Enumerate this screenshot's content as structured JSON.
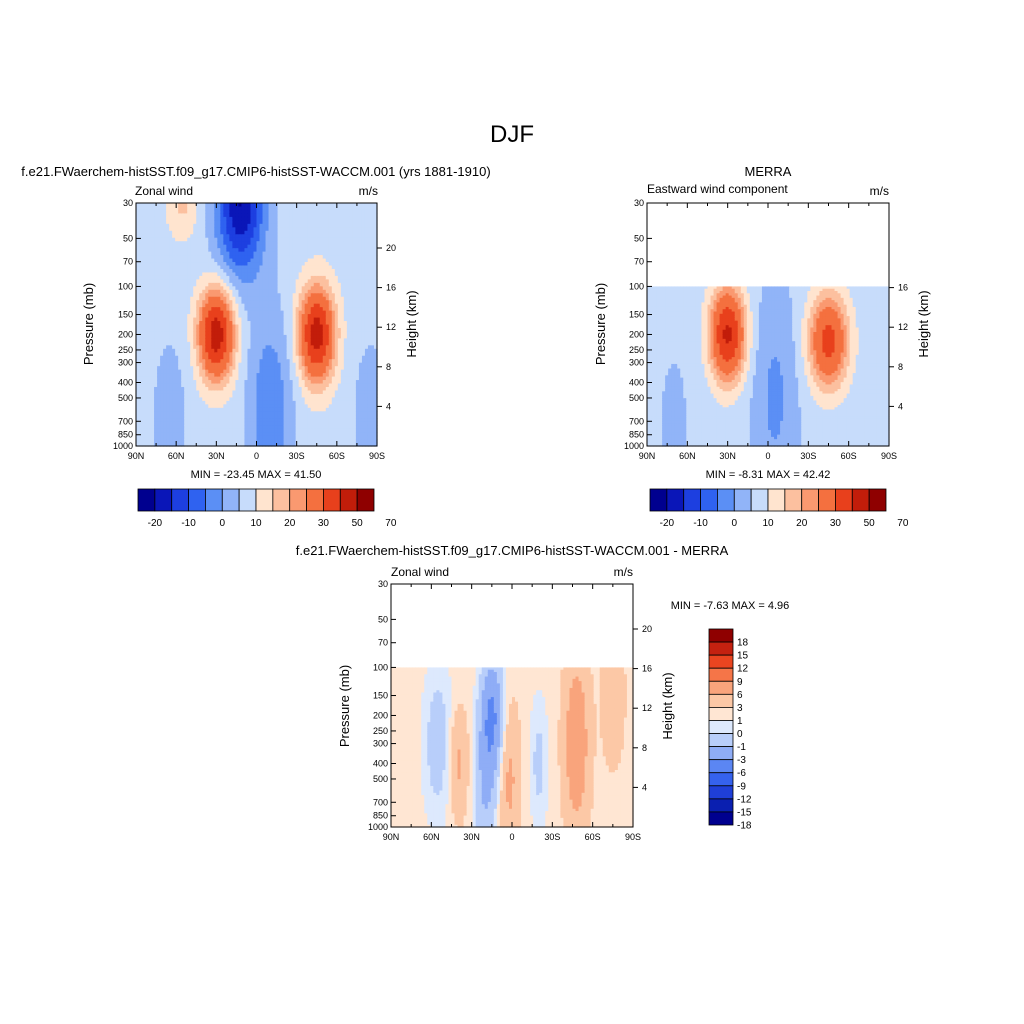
{
  "figure": {
    "title": "DJF",
    "units": "m/s"
  },
  "panels": {
    "model": {
      "case": "f.e21.FWaerchem-histSST.f09_g17.CMIP6-histSST-WACCM.001 (yrs 1881-1910)",
      "variable": "Zonal wind",
      "units": "m/s",
      "ylabel_left": "Pressure (mb)",
      "ylabel_right": "Height (km)",
      "minmax": "MIN = -23.45  MAX =  41.50"
    },
    "obs": {
      "case": "MERRA",
      "variable": "Eastward wind component",
      "units": "m/s",
      "ylabel_left": "Pressure (mb)",
      "ylabel_right": "Height (km)",
      "minmax": "MIN =  -8.31  MAX =  42.42"
    },
    "diff": {
      "case": "f.e21.FWaerchem-histSST.f09_g17.CMIP6-histSST-WACCM.001 - MERRA",
      "variable": "Zonal wind",
      "units": "m/s",
      "ylabel_left": "Pressure (mb)",
      "ylabel_right": "Height (km)",
      "minmax": "MIN =  -7.63  MAX =   4.96"
    }
  },
  "colors": {
    "main_palette": [
      "#00008f",
      "#0a16b8",
      "#1d3fe0",
      "#2f62f0",
      "#5b8ff5",
      "#91b4f8",
      "#c7dcfb",
      "#ffe4cf",
      "#fcc09f",
      "#fa9970",
      "#f4703f",
      "#e8401c",
      "#c21d0a",
      "#8f0000"
    ],
    "diff_palette": [
      "#00008f",
      "#0a1fb0",
      "#1f3fd8",
      "#3562ee",
      "#5b86f3",
      "#8fadf6",
      "#b8cefa",
      "#dde9fd",
      "#ffe6d3",
      "#fcc8a6",
      "#f9a47c",
      "#f57548",
      "#ea4520",
      "#c42110",
      "#8f0000"
    ]
  },
  "chart_data": [
    {
      "type": "heatmap",
      "title": "Zonal wind",
      "x_ticks": [
        "90N",
        "60N",
        "30N",
        "0",
        "30S",
        "60S",
        "90S"
      ],
      "x_values": [
        90,
        60,
        30,
        0,
        -30,
        -60,
        -90
      ],
      "y_ticks_pressure": [
        "30",
        "50",
        "70",
        "100",
        "150",
        "200",
        "250",
        "300",
        "400",
        "500",
        "700",
        "850",
        "1000"
      ],
      "y_ticks_height": [
        "20",
        "16",
        "12",
        "8",
        "4"
      ],
      "ylim_pressure": [
        1000,
        30
      ],
      "ylog": true,
      "min": -23.45,
      "max": 41.5,
      "levels": [
        -25,
        -20,
        -15,
        -10,
        -5,
        0,
        5,
        10,
        15,
        20,
        30,
        40,
        50,
        60,
        70
      ],
      "colorbar_labels": [
        "-20",
        "-10",
        "0",
        "10",
        "20",
        "30",
        "50",
        "70"
      ],
      "colorbar_label_after_box": [
        1,
        3,
        5,
        7,
        9,
        11,
        13,
        15
      ]
    },
    {
      "type": "heatmap",
      "title": "Eastward wind component",
      "x_ticks": [
        "90N",
        "60N",
        "30N",
        "0",
        "30S",
        "60S",
        "90S"
      ],
      "x_values": [
        90,
        60,
        30,
        0,
        -30,
        -60,
        -90
      ],
      "y_ticks_pressure": [
        "30",
        "50",
        "70",
        "100",
        "150",
        "200",
        "250",
        "300",
        "400",
        "500",
        "700",
        "850",
        "1000"
      ],
      "y_ticks_height": [
        "16",
        "12",
        "8",
        "4"
      ],
      "ylim_pressure": [
        1000,
        30
      ],
      "data_top_pressure": 100,
      "ylog": true,
      "min": -8.31,
      "max": 42.42,
      "levels": [
        -25,
        -20,
        -15,
        -10,
        -5,
        0,
        5,
        10,
        15,
        20,
        30,
        40,
        50,
        60,
        70
      ],
      "colorbar_labels": [
        "-20",
        "-10",
        "0",
        "10",
        "20",
        "30",
        "50",
        "70"
      ],
      "colorbar_label_after_box": [
        1,
        3,
        5,
        7,
        9,
        11,
        13,
        15
      ]
    },
    {
      "type": "heatmap",
      "title": "Zonal wind",
      "x_ticks": [
        "90N",
        "60N",
        "30N",
        "0",
        "30S",
        "60S",
        "90S"
      ],
      "x_values": [
        90,
        60,
        30,
        0,
        -30,
        -60,
        -90
      ],
      "y_ticks_pressure": [
        "30",
        "50",
        "70",
        "100",
        "150",
        "200",
        "250",
        "300",
        "400",
        "500",
        "700",
        "850",
        "1000"
      ],
      "y_ticks_height": [
        "20",
        "16",
        "12",
        "8",
        "4"
      ],
      "ylim_pressure": [
        1000,
        30
      ],
      "data_top_pressure": 100,
      "ylog": true,
      "min": -7.63,
      "max": 4.96,
      "levels": [
        -18,
        -15,
        -12,
        -9,
        -6,
        -3,
        -1,
        0,
        1,
        3,
        6,
        9,
        12,
        15,
        18
      ],
      "colorbar_labels": [
        "18",
        "15",
        "12",
        "9",
        "6",
        "3",
        "1",
        "0",
        "-1",
        "-3",
        "-6",
        "-9",
        "-12",
        "-15",
        "-18"
      ]
    }
  ]
}
